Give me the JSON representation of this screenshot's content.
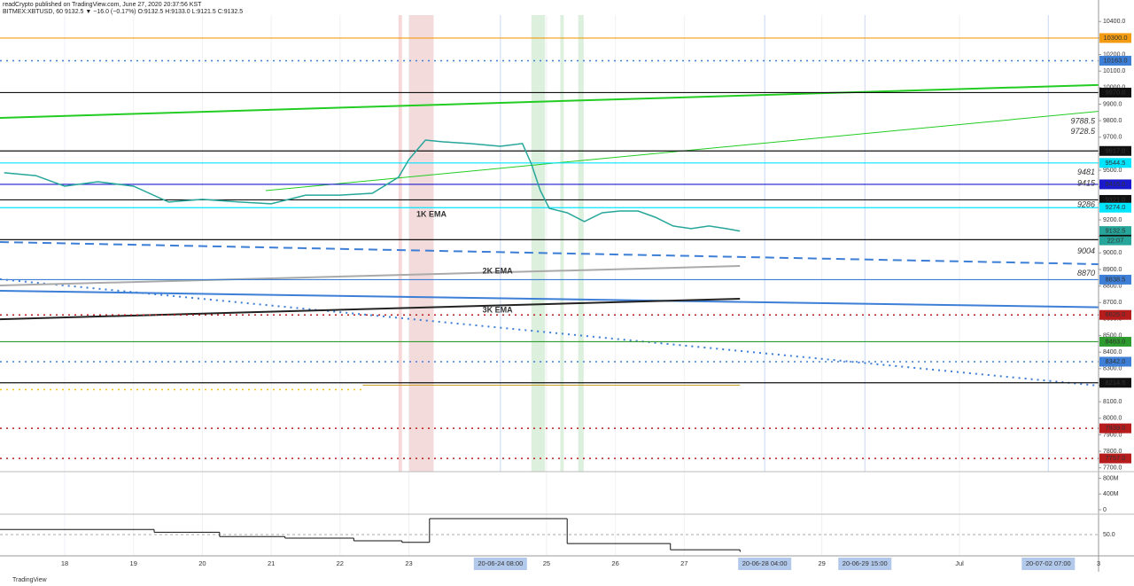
{
  "header": {
    "line1": "readCrypto published on TradingView.com, June 27, 2020 20:37:56 KST",
    "line2": "BITMEX:XBTUSD, 60  9132.5 ▼ −16.0 (−0.17%)  O:9132.5 H:9133.0 L:9121.5 C:9132.5"
  },
  "footer": "TradingView",
  "chart_data": {
    "type": "line",
    "xlim": [
      17.06,
      33.02
    ],
    "ylim": [
      7677,
      10439
    ],
    "color": "#26a69a",
    "x": [
      17.12,
      17.58,
      18,
      18.48,
      19.0,
      19.51,
      20,
      20.54,
      21,
      21.5,
      22,
      22.47,
      22.85,
      23,
      23.11,
      23.24,
      23.5,
      23.88,
      24.33,
      24.65,
      24.78,
      24.91,
      25.04,
      25.3,
      25.55,
      25.81,
      26.07,
      26.33,
      26.58,
      26.84,
      27.1,
      27.36,
      27.61,
      27.81
    ],
    "values": [
      9485,
      9468,
      9404,
      9431,
      9404,
      9308,
      9324,
      9308,
      9297,
      9350,
      9350,
      9361,
      9458,
      9565,
      9619,
      9683,
      9672,
      9662,
      9645,
      9662,
      9538,
      9377,
      9270,
      9243,
      9190,
      9243,
      9254,
      9254,
      9216,
      9163,
      9147,
      9163,
      9147,
      9132.5
    ],
    "yticks": [
      {
        "value": 10400,
        "label": "10400.0"
      },
      {
        "value": 10300,
        "label": "10300.0"
      },
      {
        "value": 10200,
        "label": "10200.0"
      },
      {
        "value": 10100,
        "label": "10100.0"
      },
      {
        "value": 10000,
        "label": "10000.0"
      },
      {
        "value": 9900,
        "label": "9900.0"
      },
      {
        "value": 9800,
        "label": "9800.0"
      },
      {
        "value": 9700,
        "label": "9700.0"
      },
      {
        "value": 9600,
        "label": "9600.0"
      },
      {
        "value": 9500,
        "label": "9500.0"
      },
      {
        "value": 9400,
        "label": "9400.0"
      },
      {
        "value": 9300,
        "label": "9300.0"
      },
      {
        "value": 9200,
        "label": "9200.0"
      },
      {
        "value": 9100,
        "label": "9100.0"
      },
      {
        "value": 9000,
        "label": "9000.0"
      },
      {
        "value": 8900,
        "label": "8900.0"
      },
      {
        "value": 8800,
        "label": "8800.0"
      },
      {
        "value": 8700,
        "label": "8700.0"
      },
      {
        "value": 8600,
        "label": "8600.0"
      },
      {
        "value": 8500,
        "label": "8500.0"
      },
      {
        "value": 8400,
        "label": "8400.0"
      },
      {
        "value": 8300,
        "label": "8300.0"
      },
      {
        "value": 8200,
        "label": "8200.0"
      },
      {
        "value": 8100,
        "label": "8100.0"
      },
      {
        "value": 8000,
        "label": "8000.0"
      },
      {
        "value": 7900,
        "label": "7900.0"
      },
      {
        "value": 7800,
        "label": "7800.0"
      },
      {
        "value": 7700,
        "label": "7700.0"
      }
    ],
    "xticks": [
      18,
      19,
      20,
      21,
      22,
      23,
      25,
      26,
      27,
      29,
      {
        "value": 31,
        "label": "Jul"
      },
      3
    ],
    "x_highlights": [
      {
        "value": 24.33,
        "label": "20-06-24  08:00"
      },
      {
        "value": 28.17,
        "label": "20-06-28  04:00"
      },
      {
        "value": 29.625,
        "label": "20-06-29  15:00"
      },
      {
        "value": 32.29,
        "label": "20-07-02  07:00"
      }
    ],
    "countdown": "22:07",
    "levels": [
      {
        "value": 10300,
        "label": "10300.0",
        "color": "#f39c12",
        "style": "solid"
      },
      {
        "value": 10163,
        "label": "10163.0",
        "color": "#3d7fd6",
        "style": "dotted"
      },
      {
        "value": 9970,
        "label": "9970.0",
        "color": "#111111",
        "style": "solid"
      },
      {
        "value": 9617,
        "label": "9617.0",
        "color": "#111111",
        "style": "solid"
      },
      {
        "value": 9544.5,
        "label": "9544.5",
        "color": "#00e5ff",
        "style": "solid"
      },
      {
        "value": 9415,
        "label": "9415.0",
        "color": "#1a1acc",
        "style": "solid"
      },
      {
        "value": 9321,
        "label": "9321.0",
        "color": "#111111",
        "style": "solid"
      },
      {
        "value": 9274,
        "label": "9274.0",
        "color": "#00e5ff",
        "style": "solid"
      },
      {
        "value": 9132.5,
        "label": "9132.5",
        "color": "#26a69a",
        "style": "none"
      },
      {
        "value": 9080,
        "label": "9080.0",
        "color": "#111111",
        "style": "solid"
      },
      {
        "value": 8838.5,
        "label": "8838.5",
        "color": "#3d7fd6",
        "style": "solid"
      },
      {
        "value": 8625,
        "label": "8625.0",
        "color": "#b71c1c",
        "style": "dotted"
      },
      {
        "value": 8463,
        "label": "8463.0",
        "color": "#2e9b2e",
        "style": "solid"
      },
      {
        "value": 8342,
        "label": "8342.0",
        "color": "#3d7fd6",
        "style": "dotted"
      },
      {
        "value": 8214.5,
        "label": "8214.5",
        "color": "#111111",
        "style": "solid"
      },
      {
        "value": 7939,
        "label": "7939.0",
        "color": "#b71c1c",
        "style": "dotted"
      },
      {
        "value": 7757,
        "label": "7757.0",
        "color": "#b71c1c",
        "style": "dotted"
      }
    ],
    "price_notes": [
      9788.5,
      9728.5,
      9481,
      9415,
      9286,
      9004,
      8870
    ],
    "trend_lines": [
      {
        "x": [
          17.06,
          33.38
        ],
        "y": [
          9817,
          10021
        ],
        "color": "#22cc22",
        "width": 2,
        "style": "solid"
      },
      {
        "x": [
          20.92,
          33.38
        ],
        "y": [
          9377,
          9871
        ],
        "color": "#22cc22",
        "width": 1,
        "style": "solid"
      },
      {
        "x": [
          17.06,
          33.02
        ],
        "y": [
          9066,
          8932
        ],
        "color": "#3d7fd6",
        "width": 2,
        "style": "dashed"
      },
      {
        "x": [
          17.06,
          33.38
        ],
        "y": [
          8771,
          8669
        ],
        "color": "#3d7fd6",
        "width": 2,
        "style": "solid"
      },
      {
        "x": [
          17.06,
          33.02
        ],
        "y": [
          8841,
          8197
        ],
        "color": "#3d7fd6",
        "width": 2,
        "style": "dotted"
      },
      {
        "x": [
          17.06,
          27.81
        ],
        "y": [
          8599,
          8723
        ],
        "color": "#222222",
        "width": 2,
        "style": "solid"
      },
      {
        "x": [
          17.06,
          27.81
        ],
        "y": [
          8803,
          8921
        ],
        "color": "#aaaaaa",
        "width": 2,
        "style": "solid"
      },
      {
        "x": [
          17.06,
          22.33
        ],
        "y": [
          8173,
          8173
        ],
        "color": "#f5c518",
        "width": 1.5,
        "style": "dotted"
      },
      {
        "x": [
          22.33,
          27.81
        ],
        "y": [
          8200,
          8200
        ],
        "color": "#c9a227",
        "width": 1,
        "style": "solid"
      }
    ],
    "annotations": [
      {
        "text": "1K EMA",
        "x": 23.11,
        "y": 9232
      },
      {
        "text": "2K EMA",
        "x": 24.07,
        "y": 8889
      },
      {
        "text": "3K EMA",
        "x": 24.07,
        "y": 8653
      }
    ],
    "bands": [
      {
        "x": [
          22.85,
          22.9
        ],
        "color": "#f4c7c7"
      },
      {
        "x": [
          23.0,
          23.36
        ],
        "color": "#f0cccc"
      },
      {
        "x": [
          24.78,
          24.98
        ],
        "color": "#cfe8cf"
      },
      {
        "x": [
          25.2,
          25.25
        ],
        "color": "#cfe8cf"
      },
      {
        "x": [
          25.46,
          25.54
        ],
        "color": "#cfe8cf"
      }
    ],
    "volume_panel": {
      "ylim": [
        0,
        900000000
      ],
      "yticks": [
        {
          "value": 800000000,
          "label": "800M"
        },
        {
          "value": 400000000,
          "label": "400M"
        },
        0
      ]
    },
    "oscillator": {
      "ylim": [
        0,
        100
      ],
      "yticks": [
        {
          "value": 50,
          "label": "50.0"
        }
      ],
      "x": [
        17.06,
        19.3,
        20.25,
        21.2,
        22.2,
        22.9,
        23.3,
        25.3,
        26.8,
        27.81
      ],
      "values": [
        63,
        56,
        45,
        41,
        34,
        30,
        91,
        27,
        11,
        7
      ]
    }
  }
}
